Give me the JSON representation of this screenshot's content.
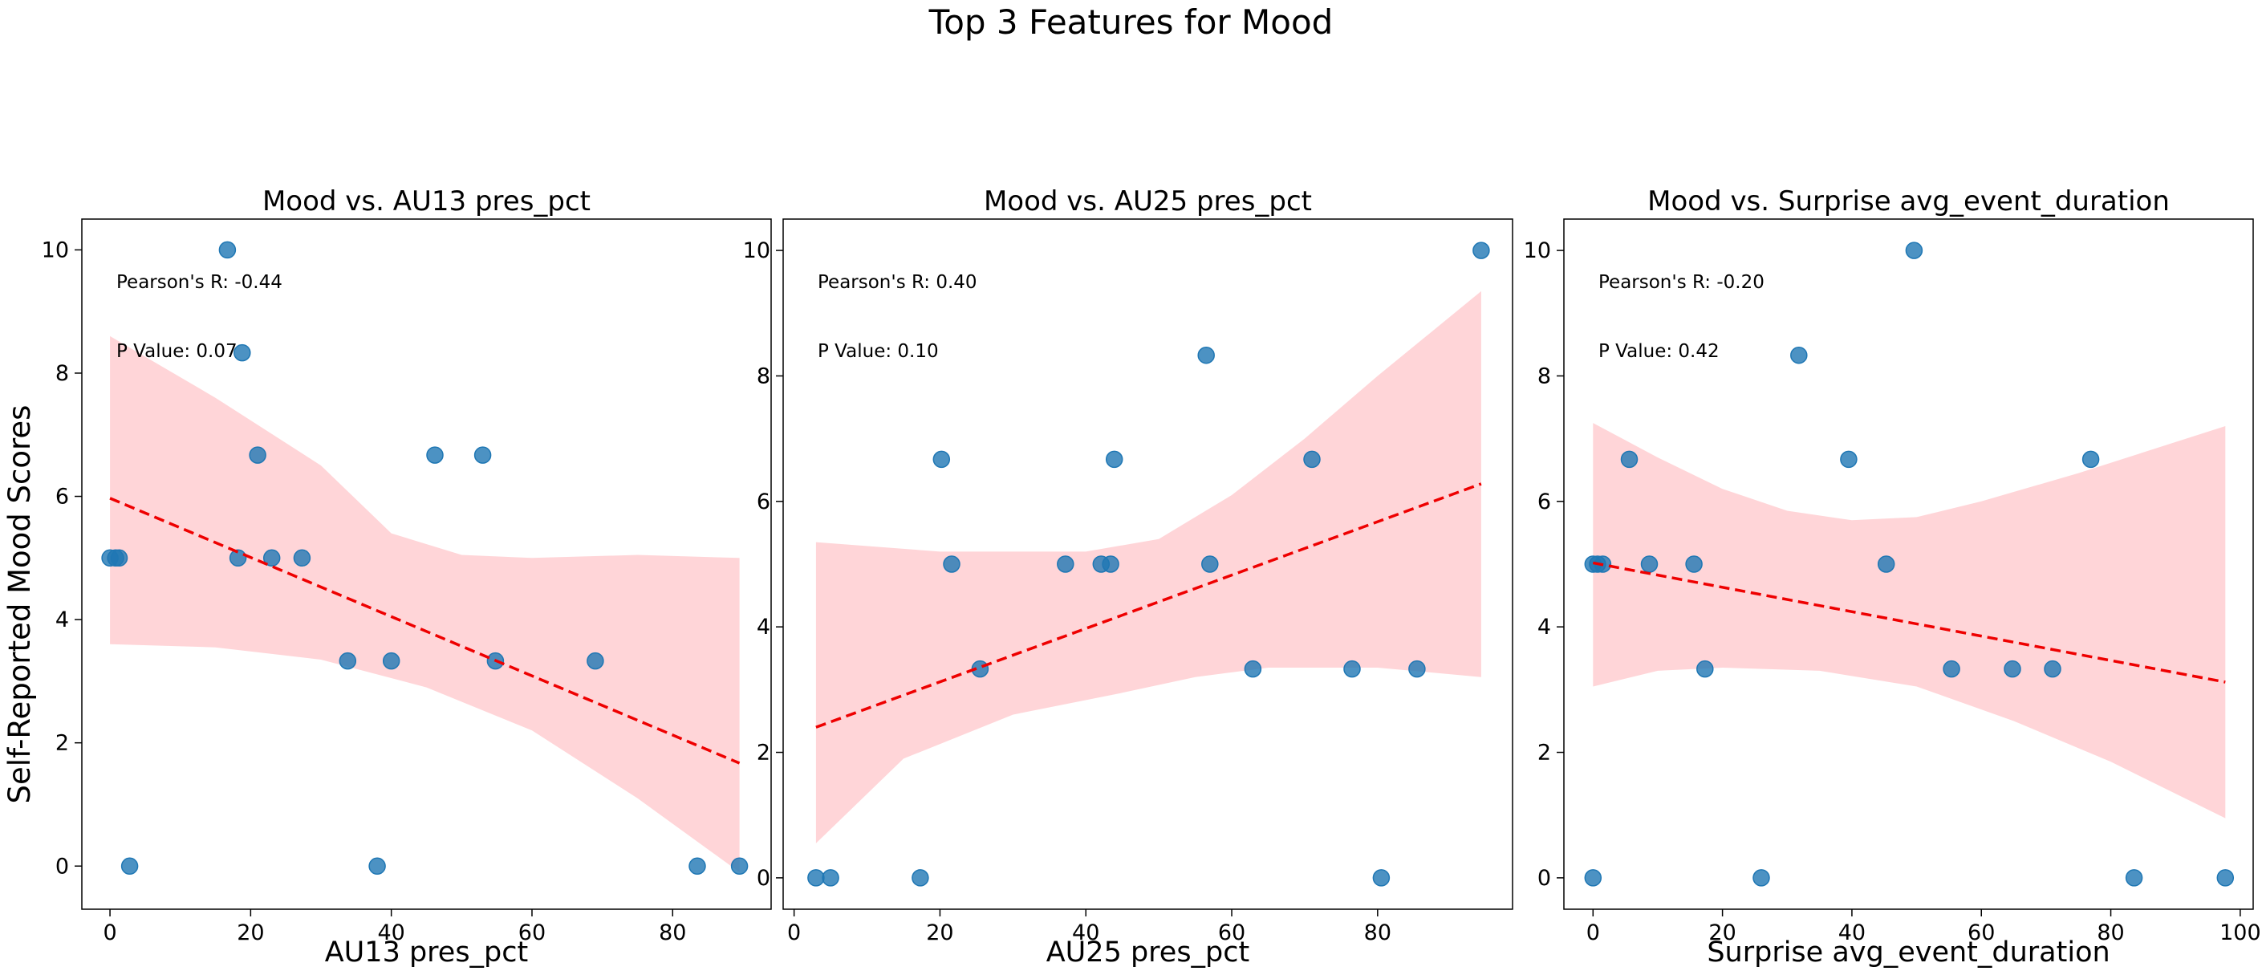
{
  "chart_data": {
    "title": "Top 3 Features for Mood",
    "ylabel": "Self-Reported Mood Scores",
    "colors": {
      "points": "#1f77b4",
      "fit_line": "#ee0000",
      "band": "#ffb3b8"
    },
    "panels": [
      {
        "type": "scatter",
        "title": "Mood vs. AU13 pres_pct",
        "xlabel": "AU13 pres_pct",
        "xlim": [
          -4,
          94
        ],
        "ylim": [
          -0.7,
          10.5
        ],
        "xticks": [
          0,
          20,
          40,
          60,
          80
        ],
        "yticks": [
          0,
          2,
          4,
          6,
          8,
          10
        ],
        "annotations": [
          "Pearson's R: -0.44",
          "P Value: 0.07"
        ],
        "points": [
          [
            0,
            5
          ],
          [
            0.8,
            5
          ],
          [
            1.3,
            5
          ],
          [
            2.8,
            0
          ],
          [
            16.7,
            10
          ],
          [
            18.2,
            5
          ],
          [
            18.8,
            8.33
          ],
          [
            21,
            6.67
          ],
          [
            23,
            5
          ],
          [
            27.3,
            5
          ],
          [
            33.8,
            3.33
          ],
          [
            38,
            0
          ],
          [
            40,
            3.33
          ],
          [
            46.2,
            6.67
          ],
          [
            53,
            6.67
          ],
          [
            54.8,
            3.33
          ],
          [
            69,
            3.33
          ],
          [
            83.5,
            0
          ],
          [
            89.5,
            0
          ]
        ],
        "fit": [
          [
            0,
            5.97
          ],
          [
            89.5,
            1.67
          ]
        ],
        "band_upper": [
          [
            0,
            8.6
          ],
          [
            15,
            7.6
          ],
          [
            30,
            6.5
          ],
          [
            40,
            5.4
          ],
          [
            50,
            5.05
          ],
          [
            60,
            5.0
          ],
          [
            75,
            5.05
          ],
          [
            89.5,
            5.0
          ]
        ],
        "band_lower": [
          [
            0,
            3.6
          ],
          [
            15,
            3.55
          ],
          [
            30,
            3.35
          ],
          [
            45,
            2.9
          ],
          [
            60,
            2.2
          ],
          [
            75,
            1.1
          ],
          [
            89.5,
            -0.1
          ]
        ]
      },
      {
        "type": "scatter",
        "title": "Mood vs. AU25 pres_pct",
        "xlabel": "AU25 pres_pct",
        "xlim": [
          -1.5,
          98.5
        ],
        "ylim": [
          -0.5,
          10.5
        ],
        "xticks": [
          0,
          20,
          40,
          60,
          80
        ],
        "yticks": [
          0,
          2,
          4,
          6,
          8,
          10
        ],
        "annotations": [
          "Pearson's R: 0.40",
          "P Value: 0.10"
        ],
        "points": [
          [
            3,
            0
          ],
          [
            5,
            0
          ],
          [
            17.3,
            0
          ],
          [
            20.2,
            6.67
          ],
          [
            21.6,
            5
          ],
          [
            25.5,
            3.33
          ],
          [
            37.2,
            5
          ],
          [
            42.1,
            5
          ],
          [
            43.4,
            5
          ],
          [
            43.9,
            6.67
          ],
          [
            56.5,
            8.33
          ],
          [
            57,
            5
          ],
          [
            62.9,
            3.33
          ],
          [
            71,
            6.67
          ],
          [
            76.5,
            3.33
          ],
          [
            80.5,
            0
          ],
          [
            85.4,
            3.33
          ],
          [
            94.2,
            10
          ]
        ],
        "fit": [
          [
            3,
            2.4
          ],
          [
            94.2,
            6.28
          ]
        ],
        "band_upper": [
          [
            3,
            5.35
          ],
          [
            20,
            5.2
          ],
          [
            40,
            5.2
          ],
          [
            50,
            5.4
          ],
          [
            60,
            6.1
          ],
          [
            70,
            7.0
          ],
          [
            80,
            8.0
          ],
          [
            94.2,
            9.35
          ]
        ],
        "band_lower": [
          [
            3,
            0.55
          ],
          [
            15,
            1.9
          ],
          [
            30,
            2.6
          ],
          [
            45,
            2.95
          ],
          [
            55,
            3.2
          ],
          [
            65,
            3.35
          ],
          [
            80,
            3.35
          ],
          [
            94.2,
            3.2
          ]
        ]
      },
      {
        "type": "scatter",
        "title": "Mood vs. Surprise avg_event_duration",
        "xlabel": "Surprise avg_event_duration",
        "xlim": [
          -4.5,
          102
        ],
        "ylim": [
          -0.5,
          10.5
        ],
        "xticks": [
          0,
          20,
          40,
          60,
          80,
          100
        ],
        "yticks": [
          0,
          2,
          4,
          6,
          8,
          10
        ],
        "annotations": [
          "Pearson's R: -0.20",
          "P Value: 0.42"
        ],
        "points": [
          [
            0,
            0
          ],
          [
            0,
            5
          ],
          [
            0.7,
            5
          ],
          [
            1.5,
            5
          ],
          [
            5.6,
            6.67
          ],
          [
            8.7,
            5
          ],
          [
            15.6,
            5
          ],
          [
            17.3,
            3.33
          ],
          [
            26,
            0
          ],
          [
            31.8,
            8.33
          ],
          [
            39.5,
            6.67
          ],
          [
            45.3,
            5
          ],
          [
            49.6,
            10
          ],
          [
            55.4,
            3.33
          ],
          [
            64.8,
            3.33
          ],
          [
            71,
            3.33
          ],
          [
            76.9,
            6.67
          ],
          [
            83.6,
            0
          ],
          [
            97.7,
            0
          ]
        ],
        "fit": [
          [
            0,
            5.02
          ],
          [
            97.7,
            3.12
          ]
        ],
        "band_upper": [
          [
            0,
            7.25
          ],
          [
            10,
            6.7
          ],
          [
            20,
            6.2
          ],
          [
            30,
            5.85
          ],
          [
            40,
            5.7
          ],
          [
            50,
            5.75
          ],
          [
            60,
            6.0
          ],
          [
            75,
            6.45
          ],
          [
            97.7,
            7.2
          ]
        ],
        "band_lower": [
          [
            0,
            3.05
          ],
          [
            10,
            3.3
          ],
          [
            20,
            3.35
          ],
          [
            35,
            3.3
          ],
          [
            50,
            3.05
          ],
          [
            65,
            2.5
          ],
          [
            80,
            1.85
          ],
          [
            97.7,
            0.95
          ]
        ]
      }
    ]
  }
}
